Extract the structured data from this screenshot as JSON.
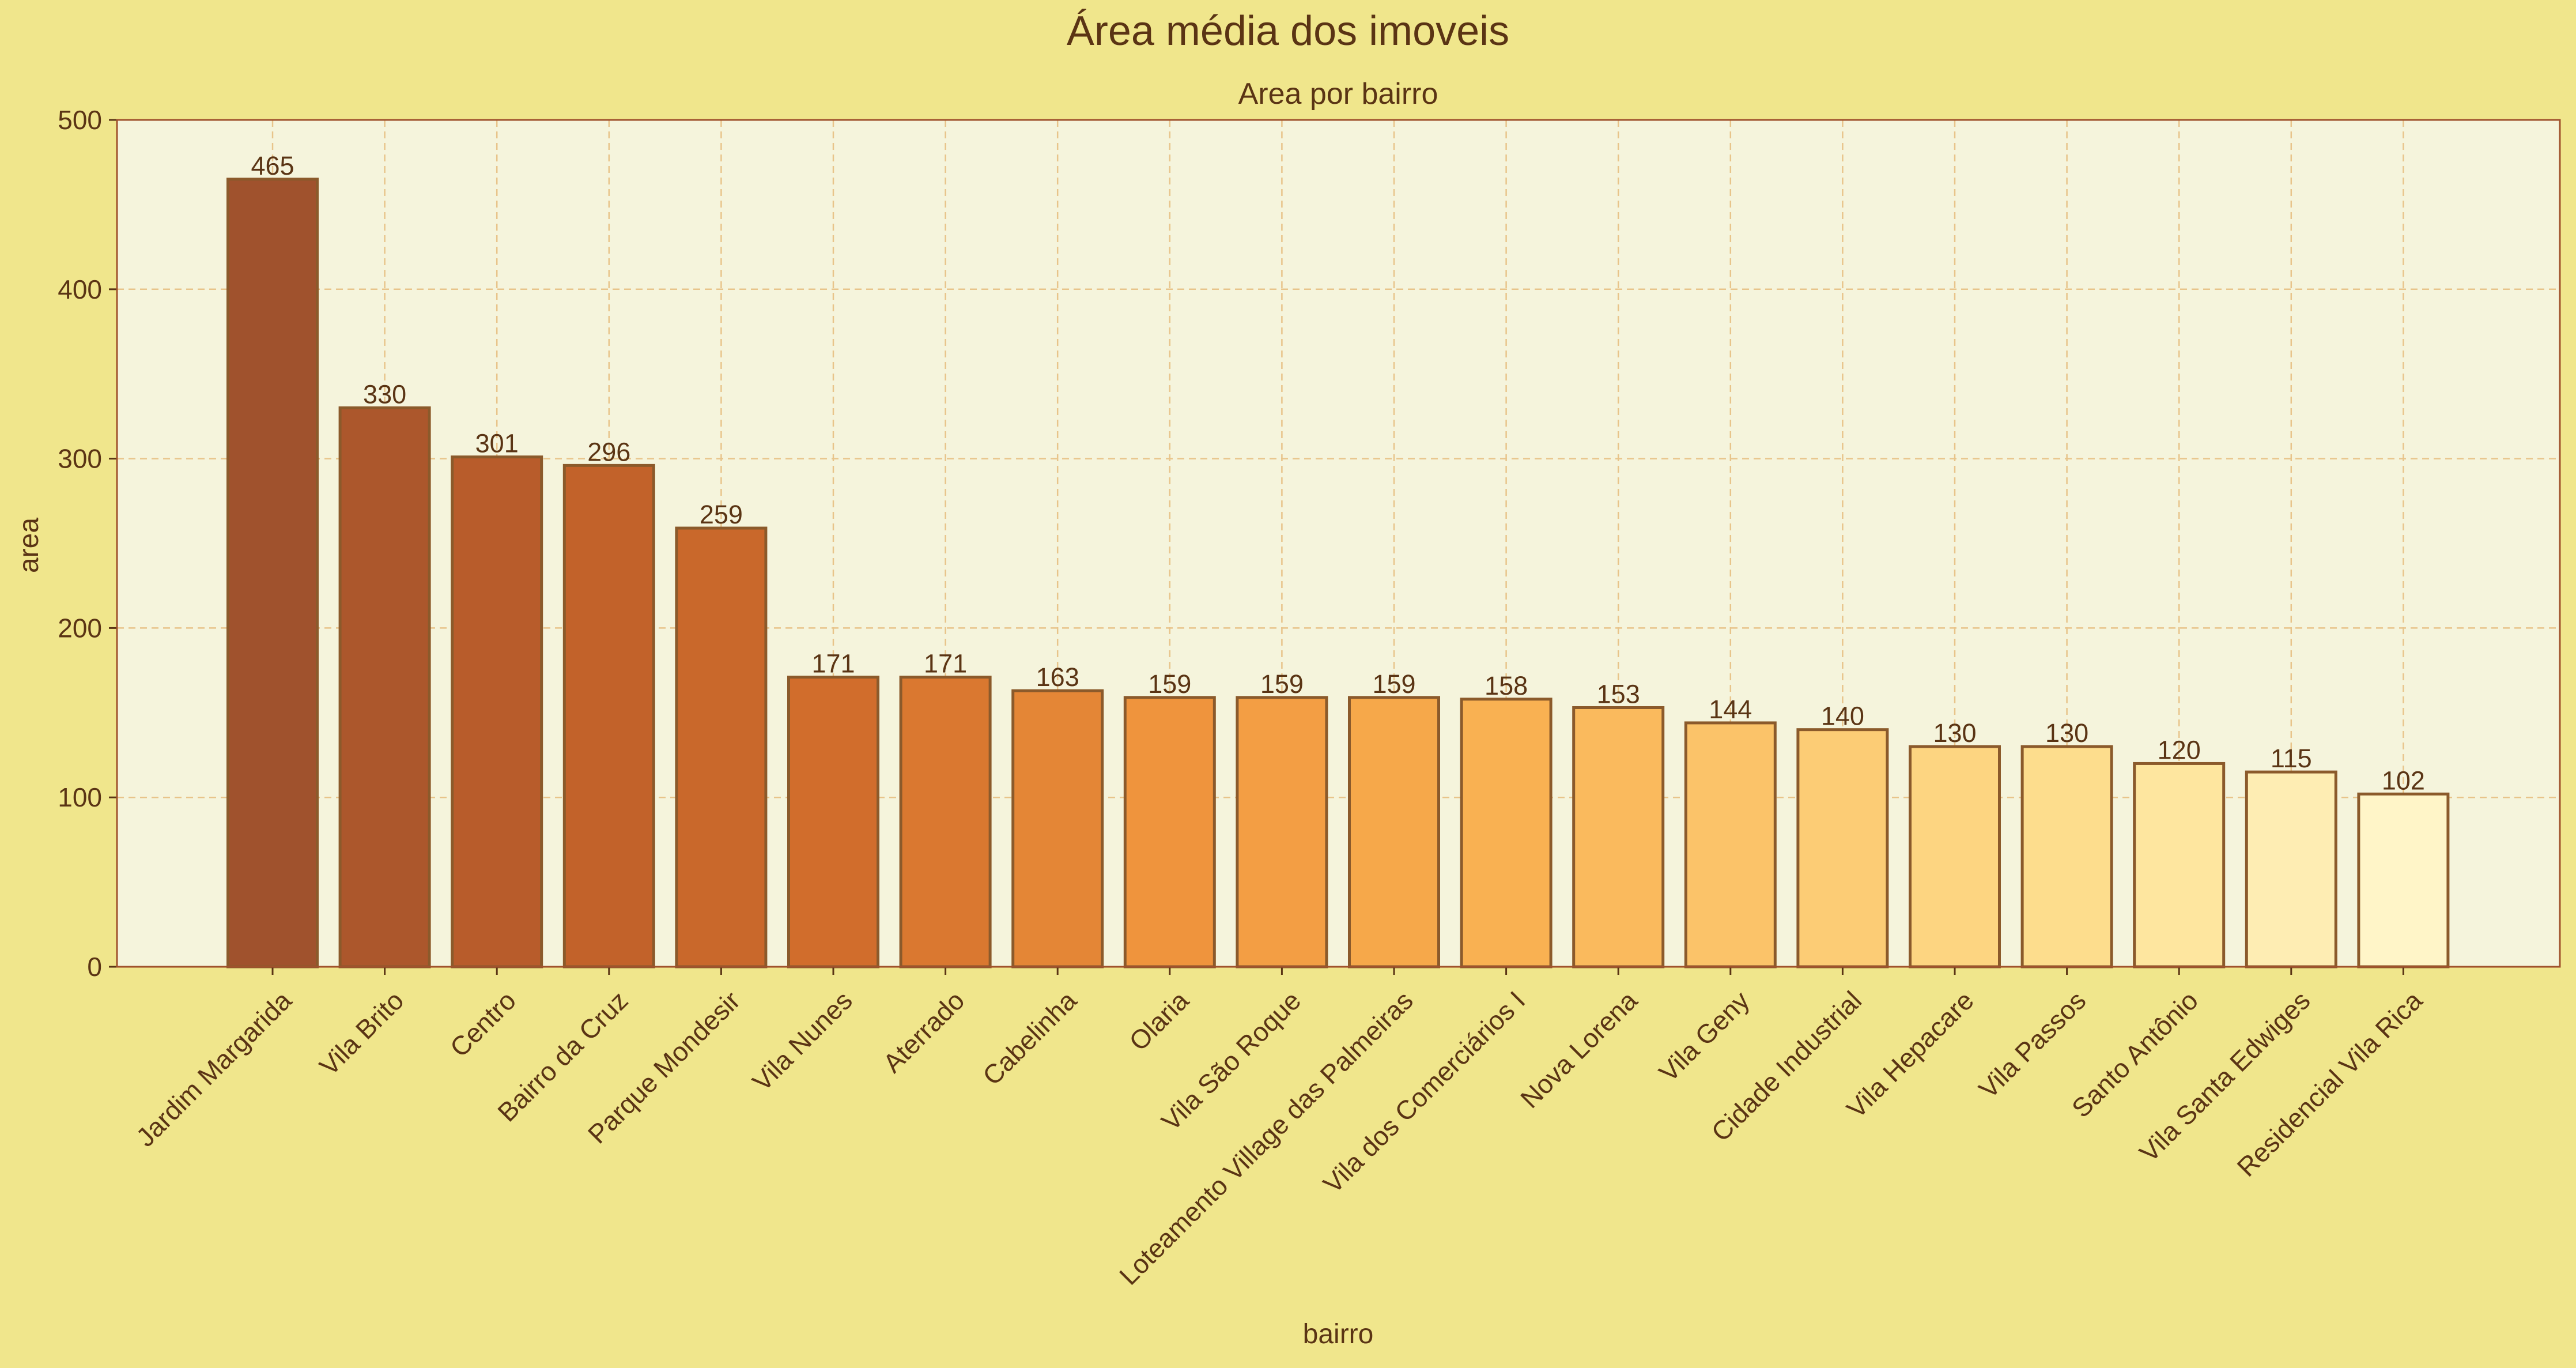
{
  "figure_title": "Área média dos imoveis",
  "chart_data": {
    "type": "bar",
    "title": "Area por bairro",
    "xlabel": "bairro",
    "ylabel": "area",
    "ylim": [
      0,
      500
    ],
    "yticks": [
      0,
      100,
      200,
      300,
      400,
      500
    ],
    "grid": true,
    "categories": [
      "Jardim Margarida",
      "Vila Brito",
      "Centro",
      "Bairro da Cruz",
      "Parque Mondesir",
      "Vila Nunes",
      "Aterrado",
      "Cabelinha",
      "Olaria",
      "Vila São Roque",
      "Loteamento Village das Palmeiras",
      "Vila dos Comerciários I",
      "Nova Lorena",
      "Vila Geny",
      "Cidade Industrial",
      "Vila Hepacare",
      "Vila Passos",
      "Santo Antônio",
      "Vila Santa Edwiges",
      "Residencial Vila Rica"
    ],
    "values": [
      465,
      330,
      301,
      296,
      259,
      171,
      171,
      163,
      159,
      159,
      159,
      158,
      153,
      144,
      140,
      130,
      130,
      120,
      115,
      102
    ],
    "data_labels": [
      "465",
      "330",
      "301",
      "296",
      "259",
      "171",
      "171",
      "163",
      "159",
      "159",
      "159",
      "158",
      "153",
      "144",
      "140",
      "130",
      "130",
      "120",
      "115",
      "102"
    ],
    "colors": {
      "figure_background": "#f0e68c",
      "plot_background": "#f5f4dc",
      "bar_edge": "#8b5a2b",
      "grid": "#e8c48a",
      "text": "#5a3414",
      "spine": "#a0522d",
      "bar_gradient": [
        "#a0522d",
        "#c0602a",
        "#d4702c",
        "#f0963e",
        "#f9b050",
        "#fcc870",
        "#fde090",
        "#fff5c8"
      ]
    }
  }
}
